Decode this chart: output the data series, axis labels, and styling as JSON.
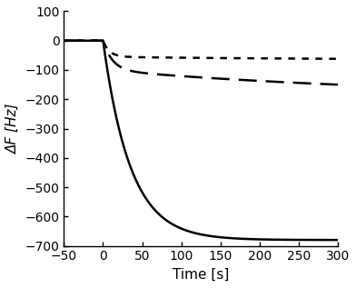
{
  "title": "",
  "xlabel": "Time [s]",
  "ylabel": "ΔF [Hz]",
  "xlim": [
    -50,
    300
  ],
  "ylim": [
    -700,
    100
  ],
  "xticks": [
    -50,
    0,
    50,
    100,
    150,
    200,
    250,
    300
  ],
  "yticks": [
    100,
    0,
    -100,
    -200,
    -300,
    -400,
    -500,
    -600,
    -700
  ],
  "line_color": "#000000",
  "background_color": "#ffffff",
  "dotted_tau1": 8,
  "dotted_A1": -55,
  "dotted_tau2": 250,
  "dotted_A2": -10,
  "dashed_tau1": 12,
  "dashed_A1": -100,
  "dashed_tau2": 400,
  "dashed_A2": -95,
  "solid_tau1": 35,
  "solid_A1": -680
}
